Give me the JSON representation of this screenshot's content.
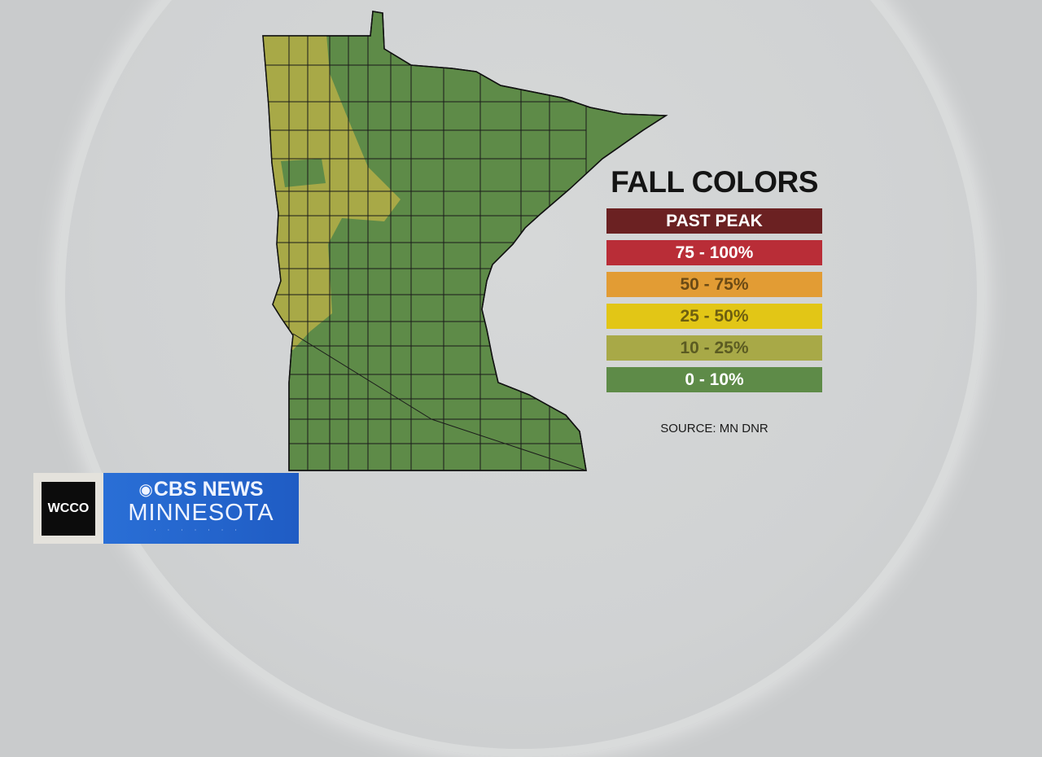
{
  "legend": {
    "title": "FALL COLORS",
    "items": [
      {
        "label": "PAST PEAK",
        "color": "#6b2122",
        "text_color": "#ffffff"
      },
      {
        "label": "75 - 100%",
        "color": "#b92d37",
        "text_color": "#ffffff"
      },
      {
        "label": "50 - 75%",
        "color": "#e29c34",
        "text_color": "#6b4a15"
      },
      {
        "label": "25 - 50%",
        "color": "#e2c616",
        "text_color": "#6e5f10"
      },
      {
        "label": "10 - 25%",
        "color": "#a8a947",
        "text_color": "#5b5b22"
      },
      {
        "label": "0 - 10%",
        "color": "#5e8b48",
        "text_color": "#ffffff"
      }
    ],
    "source": "SOURCE: MN DNR"
  },
  "map": {
    "region": "Minnesota",
    "base_category": "0 - 10%",
    "west_band_category": "10 - 25%"
  },
  "branding": {
    "station": "WCCO",
    "network": "CBS NEWS",
    "market": "MINNESOTA",
    "eye_icon": "cbs-eye-icon"
  }
}
